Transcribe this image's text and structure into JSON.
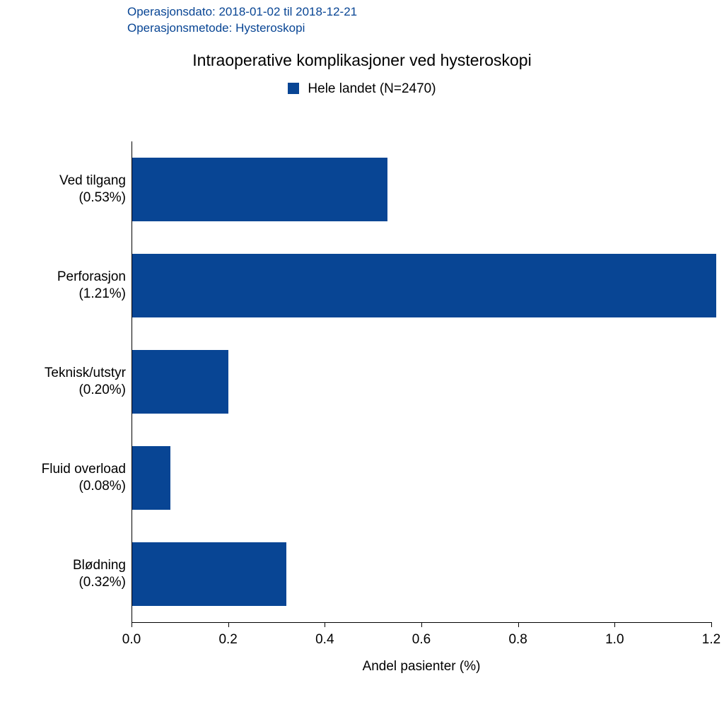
{
  "header": {
    "line1": "Operasjonsdato: 2018-01-02 til 2018-12-21",
    "line2": "Operasjonsmetode: Hysteroskopi",
    "color": "#084594"
  },
  "title": "Intraoperative komplikasjoner ved hysteroskopi",
  "legend": {
    "label": "Hele landet (N=2470)",
    "swatch_color": "#084594"
  },
  "chart": {
    "type": "bar-horizontal",
    "xlabel": "Andel pasienter (%)",
    "xlim": [
      0.0,
      1.2
    ],
    "xtick_step": 0.2,
    "xticks": [
      "0.0",
      "0.2",
      "0.4",
      "0.6",
      "0.8",
      "1.0",
      "1.2"
    ],
    "bar_color": "#084594",
    "background_color": "#ffffff",
    "axis_color": "#000000",
    "bar_height_ratio": 0.66,
    "label_fontsize": 19,
    "title_fontsize": 23,
    "categories": [
      {
        "name": "Ved tilgang",
        "pct_label": "(0.53%)",
        "value": 0.53
      },
      {
        "name": "Perforasjon",
        "pct_label": "(1.21%)",
        "value": 1.21
      },
      {
        "name": "Teknisk/utstyr",
        "pct_label": "(0.20%)",
        "value": 0.2
      },
      {
        "name": "Fluid overload",
        "pct_label": "(0.08%)",
        "value": 0.08
      },
      {
        "name": "Blødning",
        "pct_label": "(0.32%)",
        "value": 0.32
      }
    ]
  }
}
